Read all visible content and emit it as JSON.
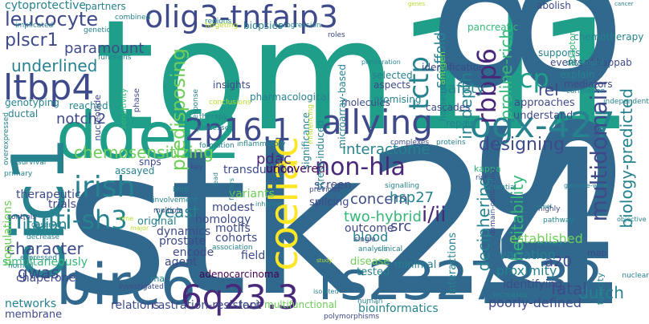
{
  "palette": {
    "dark_purple": "#440154",
    "purple": "#482878",
    "indigo": "#3e4a89",
    "blue": "#31688e",
    "steel": "#26828e",
    "teal": "#1f9e89",
    "green": "#35b779",
    "lime": "#6ece58",
    "yellow_green": "#b5de2b",
    "yellow": "#fde725"
  },
  "words": [
    {
      "text": "stk24",
      "color": "blue"
    },
    {
      "text": "tom1l1",
      "color": "teal"
    },
    {
      "text": "rs2327832",
      "color": "blue"
    },
    {
      "text": "ddef2",
      "color": "teal"
    },
    {
      "text": "birc6",
      "color": "blue"
    },
    {
      "text": "rs842647",
      "color": "blue"
    },
    {
      "text": "olig3-tnfaip3",
      "color": "indigo"
    },
    {
      "text": "ogx-427",
      "color": "steel"
    },
    {
      "text": "allying",
      "color": "indigo"
    },
    {
      "text": "6q23.3",
      "color": "purple"
    },
    {
      "text": "cic1",
      "color": "steel"
    },
    {
      "text": "ltbp4",
      "color": "indigo"
    },
    {
      "text": "2p16.1",
      "color": "indigo"
    },
    {
      "text": "coeliac",
      "color": "yellow"
    },
    {
      "text": "irish",
      "color": "steel"
    },
    {
      "text": "multi-sh3",
      "color": "steel"
    },
    {
      "text": "rbbp6",
      "color": "purple"
    },
    {
      "text": "vcp",
      "color": "teal"
    },
    {
      "text": "tctp",
      "color": "steel"
    },
    {
      "text": "non-hla",
      "color": "purple"
    },
    {
      "text": "multidomain",
      "color": "indigo"
    },
    {
      "text": "biology-predicted",
      "color": "steel"
    },
    {
      "text": "leucocyte",
      "color": "indigo"
    },
    {
      "text": "plscr1",
      "color": "indigo"
    },
    {
      "text": "paramount",
      "color": "indigo"
    },
    {
      "text": "underlined",
      "color": "steel"
    },
    {
      "text": "notch2",
      "color": "indigo"
    },
    {
      "text": "chemosensitizing",
      "color": "lime"
    },
    {
      "text": "predisposing",
      "color": "lime"
    },
    {
      "text": "interactome",
      "color": "steel"
    },
    {
      "text": "designing",
      "color": "indigo"
    },
    {
      "text": "two-hybrid",
      "color": "green"
    },
    {
      "text": "pdac",
      "color": "purple"
    },
    {
      "text": "concern",
      "color": "indigo"
    },
    {
      "text": "hsp27",
      "color": "steel"
    },
    {
      "text": "yeast",
      "color": "steel"
    },
    {
      "text": "italian",
      "color": "steel"
    },
    {
      "text": "character",
      "color": "indigo"
    },
    {
      "text": "gwas",
      "color": "indigo"
    },
    {
      "text": "i/ii",
      "color": "purple"
    },
    {
      "text": "deciphering",
      "color": "steel"
    },
    {
      "text": "heritability",
      "color": "green"
    },
    {
      "text": "safety",
      "color": "steel"
    },
    {
      "text": "scaffold",
      "color": "steel"
    },
    {
      "text": "in-depth",
      "color": "steel"
    },
    {
      "text": "proline-rich",
      "color": "green"
    },
    {
      "text": "rel",
      "color": "indigo"
    },
    {
      "text": "dutch",
      "color": "steel"
    },
    {
      "text": "fatal",
      "color": "indigo"
    },
    {
      "text": "a20",
      "color": "indigo"
    },
    {
      "text": "src",
      "color": "indigo"
    },
    {
      "text": "screen",
      "color": "indigo"
    },
    {
      "text": "outcome",
      "color": "indigo"
    },
    {
      "text": "blood",
      "color": "steel"
    },
    {
      "text": "established",
      "color": "lime"
    },
    {
      "text": "variation",
      "color": "steel"
    },
    {
      "text": "identifying",
      "color": "indigo"
    },
    {
      "text": "proximity",
      "color": "steel"
    },
    {
      "text": "poorly-defined",
      "color": "indigo"
    },
    {
      "text": "bioinformatics",
      "color": "steel"
    },
    {
      "text": "multifunctional",
      "color": "lime"
    },
    {
      "text": "loci",
      "color": "indigo"
    },
    {
      "text": "castration-resistant",
      "color": "indigo"
    },
    {
      "text": "relations",
      "color": "indigo"
    },
    {
      "text": "membrane",
      "color": "indigo"
    },
    {
      "text": "networks",
      "color": "steel"
    },
    {
      "text": "simultaneously",
      "color": "green"
    },
    {
      "text": "chaperone",
      "color": "indigo"
    },
    {
      "text": "populations",
      "color": "lime"
    },
    {
      "text": "adenocarcinoma",
      "color": "dark_purple"
    },
    {
      "text": "agent",
      "color": "indigo"
    },
    {
      "text": "encode",
      "color": "indigo"
    },
    {
      "text": "prostate",
      "color": "indigo"
    },
    {
      "text": "cohorts",
      "color": "indigo"
    },
    {
      "text": "motifs",
      "color": "indigo"
    },
    {
      "text": "modest",
      "color": "indigo"
    },
    {
      "text": "homology",
      "color": "indigo"
    },
    {
      "text": "dynamics",
      "color": "indigo"
    },
    {
      "text": "field",
      "color": "indigo"
    },
    {
      "text": "original",
      "color": "steel"
    },
    {
      "text": "trials",
      "color": "indigo"
    },
    {
      "text": "therapeutic",
      "color": "indigo"
    },
    {
      "text": "transduction",
      "color": "indigo"
    },
    {
      "text": "uncovered",
      "color": "dark_purple"
    },
    {
      "text": "variants",
      "color": "lime"
    },
    {
      "text": "disease",
      "color": "lime"
    },
    {
      "text": "tested",
      "color": "steel"
    },
    {
      "text": "minimal",
      "color": "steel"
    },
    {
      "text": "interactions",
      "color": "steel"
    },
    {
      "text": "splicing",
      "color": "indigo"
    },
    {
      "text": "cytoprotective",
      "color": "steel"
    },
    {
      "text": "partners",
      "color": "steel"
    },
    {
      "text": "abolish",
      "color": "indigo"
    },
    {
      "text": "chemotherapy",
      "color": "steel"
    },
    {
      "text": "nf-kappab",
      "color": "indigo"
    },
    {
      "text": "supports",
      "color": "steel"
    },
    {
      "text": "events",
      "color": "indigo"
    },
    {
      "text": "explain",
      "color": "steel"
    },
    {
      "text": "mediators",
      "color": "indigo"
    },
    {
      "text": "approaches",
      "color": "indigo"
    },
    {
      "text": "understand",
      "color": "indigo"
    },
    {
      "text": "repair",
      "color": "steel"
    },
    {
      "text": "cascades",
      "color": "indigo"
    },
    {
      "text": "molecules",
      "color": "indigo"
    },
    {
      "text": "insights",
      "color": "indigo"
    },
    {
      "text": "snps",
      "color": "indigo"
    },
    {
      "text": "reached",
      "color": "steel"
    },
    {
      "text": "ductal",
      "color": "steel"
    },
    {
      "text": "genotyping",
      "color": "steel"
    },
    {
      "text": "assayed",
      "color": "steel"
    },
    {
      "text": "biopsies",
      "color": "steel"
    },
    {
      "text": "pancreatic",
      "color": "green"
    },
    {
      "text": "identification",
      "color": "indigo"
    },
    {
      "text": "promising",
      "color": "steel"
    },
    {
      "text": "significance",
      "color": "steel"
    },
    {
      "text": "pharmacological",
      "color": "steel"
    },
    {
      "text": "stress-induced",
      "color": "steel"
    },
    {
      "text": "microarray-based",
      "color": "steel"
    },
    {
      "text": "selected",
      "color": "steel"
    },
    {
      "text": "aspects",
      "color": "indigo"
    },
    {
      "text": "homeostasis",
      "color": "steel"
    },
    {
      "text": "antigen",
      "color": "lime"
    },
    {
      "text": "kappa",
      "color": "green"
    },
    {
      "text": "rna",
      "color": "steel"
    },
    {
      "text": "map",
      "color": "indigo"
    },
    {
      "text": "toxicity",
      "color": "steel"
    },
    {
      "text": "adaptor",
      "color": "green"
    },
    {
      "text": "increases",
      "color": "steel"
    },
    {
      "text": "phase",
      "color": "indigo"
    },
    {
      "text": "nucleotide",
      "color": "indigo"
    },
    {
      "text": "sensitivity",
      "color": "green"
    },
    {
      "text": "combined",
      "color": "steel"
    },
    {
      "text": "regions",
      "color": "steel"
    },
    {
      "text": "targeting",
      "color": "yellow_green"
    },
    {
      "text": "progression",
      "color": "steel"
    },
    {
      "text": "implicated",
      "color": "steel"
    },
    {
      "text": "genetic",
      "color": "steel"
    },
    {
      "text": "functions",
      "color": "steel"
    },
    {
      "text": "overexpressed",
      "color": "steel"
    },
    {
      "text": "influencing",
      "color": "yellow_green"
    },
    {
      "text": "developed",
      "color": "steel"
    },
    {
      "text": "correlation",
      "color": "steel"
    },
    {
      "text": "independent",
      "color": "steel"
    },
    {
      "text": "domain-containing",
      "color": "indigo"
    },
    {
      "text": "genome-wide",
      "color": "steel"
    },
    {
      "text": "highly",
      "color": "indigo"
    },
    {
      "text": "pathway",
      "color": "steel"
    },
    {
      "text": "reveals",
      "color": "steel"
    },
    {
      "text": "nuclear",
      "color": "steel"
    },
    {
      "text": "complexes",
      "color": "indigo"
    },
    {
      "text": "proteins",
      "color": "steel"
    },
    {
      "text": "response",
      "color": "steel"
    },
    {
      "text": "therapy",
      "color": "steel"
    },
    {
      "text": "processes",
      "color": "steel"
    },
    {
      "text": "conclusions",
      "color": "yellow_green"
    },
    {
      "text": "formation",
      "color": "steel"
    },
    {
      "text": "inflammatory",
      "color": "steel"
    },
    {
      "text": "survival",
      "color": "steel"
    },
    {
      "text": "primary",
      "color": "steel"
    },
    {
      "text": "controls",
      "color": "indigo"
    },
    {
      "text": "observe",
      "color": "steel"
    },
    {
      "text": "decrease",
      "color": "steel"
    },
    {
      "text": "expressed",
      "color": "steel"
    },
    {
      "text": "normal",
      "color": "steel"
    },
    {
      "text": "investigated",
      "color": "indigo"
    },
    {
      "text": "involvement",
      "color": "steel"
    },
    {
      "text": "multiple",
      "color": "indigo"
    },
    {
      "text": "bind",
      "color": "steel"
    },
    {
      "text": "key",
      "color": "indigo"
    },
    {
      "text": "time",
      "color": "yellow_green"
    },
    {
      "text": "major",
      "color": "yellow_green"
    },
    {
      "text": "association",
      "color": "steel"
    },
    {
      "text": "previous",
      "color": "indigo"
    },
    {
      "text": "single",
      "color": "indigo"
    },
    {
      "text": "analysis",
      "color": "steel"
    },
    {
      "text": "clinical",
      "color": "steel"
    },
    {
      "text": "human",
      "color": "steel"
    },
    {
      "text": "study",
      "color": "yellow_green"
    },
    {
      "text": "polymorphisms",
      "color": "indigo"
    },
    {
      "text": "isolated",
      "color": "steel"
    },
    {
      "text": "signalling",
      "color": "steel"
    },
    {
      "text": "potential",
      "color": "steel"
    },
    {
      "text": "risk",
      "color": "indigo"
    },
    {
      "text": "level",
      "color": "steel"
    },
    {
      "text": "roles",
      "color": "indigo"
    },
    {
      "text": "genes",
      "color": "yellow_green"
    },
    {
      "text": "cancer",
      "color": "steel"
    },
    {
      "text": "objective",
      "color": "steel"
    },
    {
      "text": "proliferation",
      "color": "steel"
    },
    {
      "text": "dna",
      "color": "steel"
    },
    {
      "text": "factors",
      "color": "steel"
    },
    {
      "text": "inhibitor",
      "color": "steel"
    },
    {
      "text": "lead",
      "color": "steel"
    }
  ]
}
